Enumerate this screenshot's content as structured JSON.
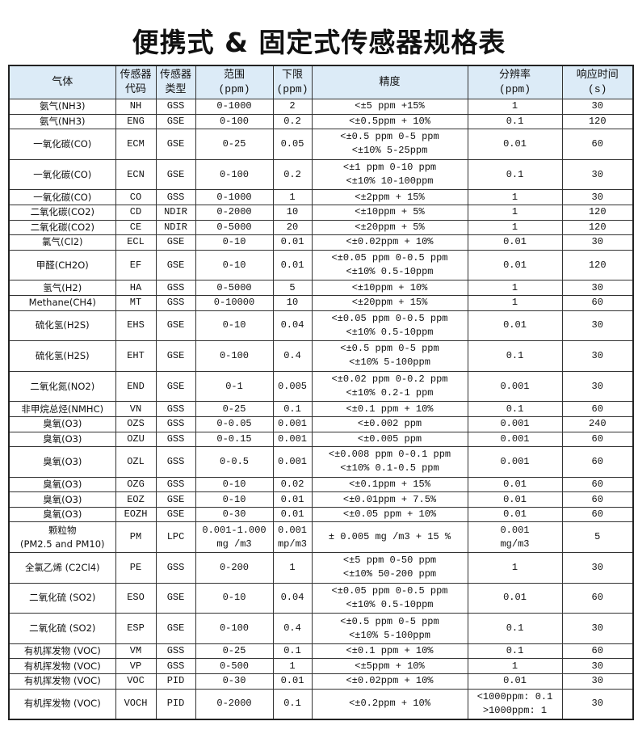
{
  "title": "便携式 & 固定式传感器规格表",
  "header_bg": "#dcebf7",
  "columns": [
    [
      "气体"
    ],
    [
      "传感器",
      "代码"
    ],
    [
      "传感器",
      "类型"
    ],
    [
      "范围",
      "(ppm)"
    ],
    [
      "下限",
      "(ppm)"
    ],
    [
      "精度"
    ],
    [
      "分辨率",
      "(ppm)"
    ],
    [
      "响应时间",
      "(s)"
    ]
  ],
  "rows": [
    [
      [
        "氨气(NH3)"
      ],
      [
        "NH"
      ],
      [
        "GSS"
      ],
      [
        "0-1000"
      ],
      [
        "2"
      ],
      [
        "<±5 ppm +15%"
      ],
      [
        "1"
      ],
      [
        "30"
      ]
    ],
    [
      [
        "氨气(NH3)"
      ],
      [
        "ENG"
      ],
      [
        "GSE"
      ],
      [
        "0-100"
      ],
      [
        "0.2"
      ],
      [
        "<±0.5ppm + 10%"
      ],
      [
        "0.1"
      ],
      [
        "120"
      ]
    ],
    [
      [
        "一氧化碳(CO)"
      ],
      [
        "ECM"
      ],
      [
        "GSE"
      ],
      [
        "0-25"
      ],
      [
        "0.05"
      ],
      [
        "<±0.5 ppm 0-5 ppm",
        "<±10% 5-25ppm"
      ],
      [
        "0.01"
      ],
      [
        "60"
      ]
    ],
    [
      [
        "一氧化碳(CO)"
      ],
      [
        "ECN"
      ],
      [
        "GSE"
      ],
      [
        "0-100"
      ],
      [
        "0.2"
      ],
      [
        "<±1 ppm 0-10 ppm",
        "<±10% 10-100ppm"
      ],
      [
        "0.1"
      ],
      [
        "30"
      ]
    ],
    [
      [
        "一氧化碳(CO)"
      ],
      [
        "CO"
      ],
      [
        "GSS"
      ],
      [
        "0-1000"
      ],
      [
        "1"
      ],
      [
        "<±2ppm + 15%"
      ],
      [
        "1"
      ],
      [
        "30"
      ]
    ],
    [
      [
        "二氧化碳(CO2)"
      ],
      [
        "CD"
      ],
      [
        "NDIR"
      ],
      [
        "0-2000"
      ],
      [
        "10"
      ],
      [
        "<±10ppm + 5%"
      ],
      [
        "1"
      ],
      [
        "120"
      ]
    ],
    [
      [
        "二氧化碳(CO2)"
      ],
      [
        "CE"
      ],
      [
        "NDIR"
      ],
      [
        "0-5000"
      ],
      [
        "20"
      ],
      [
        "<±20ppm + 5%"
      ],
      [
        "1"
      ],
      [
        "120"
      ]
    ],
    [
      [
        "氯气(Cl2)"
      ],
      [
        "ECL"
      ],
      [
        "GSE"
      ],
      [
        "0-10"
      ],
      [
        "0.01"
      ],
      [
        "<±0.02ppm + 10%"
      ],
      [
        "0.01"
      ],
      [
        "30"
      ]
    ],
    [
      [
        "甲醛(CH2O)"
      ],
      [
        "EF"
      ],
      [
        "GSE"
      ],
      [
        "0-10"
      ],
      [
        "0.01"
      ],
      [
        "<±0.05 ppm 0-0.5 ppm",
        "<±10% 0.5-10ppm"
      ],
      [
        "0.01"
      ],
      [
        "120"
      ]
    ],
    [
      [
        "氢气(H2)"
      ],
      [
        "HA"
      ],
      [
        "GSS"
      ],
      [
        "0-5000"
      ],
      [
        "5"
      ],
      [
        "<±10ppm + 10%"
      ],
      [
        "1"
      ],
      [
        "30"
      ]
    ],
    [
      [
        "Methane(CH4)"
      ],
      [
        "MT"
      ],
      [
        "GSS"
      ],
      [
        "0-10000"
      ],
      [
        "10"
      ],
      [
        "<±20ppm + 15%"
      ],
      [
        "1"
      ],
      [
        "60"
      ]
    ],
    [
      [
        "硫化氢(H2S)"
      ],
      [
        "EHS"
      ],
      [
        "GSE"
      ],
      [
        "0-10"
      ],
      [
        "0.04"
      ],
      [
        "<±0.05 ppm 0-0.5 ppm",
        "<±10% 0.5-10ppm"
      ],
      [
        "0.01"
      ],
      [
        "30"
      ]
    ],
    [
      [
        "硫化氢(H2S)"
      ],
      [
        "EHT"
      ],
      [
        "GSE"
      ],
      [
        "0-100"
      ],
      [
        "0.4"
      ],
      [
        "<±0.5 ppm 0-5 ppm",
        "<±10% 5-100ppm"
      ],
      [
        "0.1"
      ],
      [
        "30"
      ]
    ],
    [
      [
        "二氧化氮(NO2)"
      ],
      [
        "END"
      ],
      [
        "GSE"
      ],
      [
        "0-1"
      ],
      [
        "0.005"
      ],
      [
        "<±0.02 ppm 0-0.2 ppm",
        "<±10% 0.2-1 ppm"
      ],
      [
        "0.001"
      ],
      [
        "30"
      ]
    ],
    [
      [
        "非甲烷总烃(NMHC)"
      ],
      [
        "VN"
      ],
      [
        "GSS"
      ],
      [
        "0-25"
      ],
      [
        "0.1"
      ],
      [
        "<±0.1 ppm + 10%"
      ],
      [
        "0.1"
      ],
      [
        "60"
      ]
    ],
    [
      [
        "臭氧(O3)"
      ],
      [
        "OZS"
      ],
      [
        "GSS"
      ],
      [
        "0-0.05"
      ],
      [
        "0.001"
      ],
      [
        "<±0.002 ppm"
      ],
      [
        "0.001"
      ],
      [
        "240"
      ]
    ],
    [
      [
        "臭氧(O3)"
      ],
      [
        "OZU"
      ],
      [
        "GSS"
      ],
      [
        "0-0.15"
      ],
      [
        "0.001"
      ],
      [
        "<±0.005 ppm"
      ],
      [
        "0.001"
      ],
      [
        "60"
      ]
    ],
    [
      [
        "臭氧(O3)"
      ],
      [
        "OZL"
      ],
      [
        "GSS"
      ],
      [
        "0-0.5"
      ],
      [
        "0.001"
      ],
      [
        "<±0.008 ppm 0-0.1 ppm",
        "<±10% 0.1-0.5 ppm"
      ],
      [
        "0.001"
      ],
      [
        "60"
      ]
    ],
    [
      [
        "臭氧(O3)"
      ],
      [
        "OZG"
      ],
      [
        "GSS"
      ],
      [
        "0-10"
      ],
      [
        "0.02"
      ],
      [
        "<±0.1ppm + 15%"
      ],
      [
        "0.01"
      ],
      [
        "60"
      ]
    ],
    [
      [
        "臭氧(O3)"
      ],
      [
        "EOZ"
      ],
      [
        "GSE"
      ],
      [
        "0-10"
      ],
      [
        "0.01"
      ],
      [
        "<±0.01ppm + 7.5%"
      ],
      [
        "0.01"
      ],
      [
        "60"
      ]
    ],
    [
      [
        "臭氧(O3)"
      ],
      [
        "EOZH"
      ],
      [
        "GSE"
      ],
      [
        "0-30"
      ],
      [
        "0.01"
      ],
      [
        "<±0.05 ppm + 10%"
      ],
      [
        "0.01"
      ],
      [
        "60"
      ]
    ],
    [
      [
        "颗粒物",
        "(PM2.5 and PM10)"
      ],
      [
        "PM"
      ],
      [
        "LPC"
      ],
      [
        "0.001-1.000",
        "mg /m3"
      ],
      [
        "0.001",
        "mp/m3"
      ],
      [
        "± 0.005 mg /m3 + 15 %"
      ],
      [
        "0.001",
        "mg/m3"
      ],
      [
        "5"
      ]
    ],
    [
      [
        "全氯乙烯 (C2Cl4)"
      ],
      [
        "PE"
      ],
      [
        "GSS"
      ],
      [
        "0-200"
      ],
      [
        "1"
      ],
      [
        "<±5 ppm 0-50 ppm",
        "<±10% 50-200 ppm"
      ],
      [
        "1"
      ],
      [
        "30"
      ]
    ],
    [
      [
        "二氧化硫 (SO2)"
      ],
      [
        "ESO"
      ],
      [
        "GSE"
      ],
      [
        "0-10"
      ],
      [
        "0.04"
      ],
      [
        "<±0.05 ppm 0-0.5 ppm",
        "<±10% 0.5-10ppm"
      ],
      [
        "0.01"
      ],
      [
        "60"
      ]
    ],
    [
      [
        "二氧化硫 (SO2)"
      ],
      [
        "ESP"
      ],
      [
        "GSE"
      ],
      [
        "0-100"
      ],
      [
        "0.4"
      ],
      [
        "<±0.5 ppm 0-5 ppm",
        "<±10% 5-100ppm"
      ],
      [
        "0.1"
      ],
      [
        "30"
      ]
    ],
    [
      [
        "有机挥发物 (VOC)"
      ],
      [
        "VM"
      ],
      [
        "GSS"
      ],
      [
        "0-25"
      ],
      [
        "0.1"
      ],
      [
        "<±0.1 ppm + 10%"
      ],
      [
        "0.1"
      ],
      [
        "60"
      ]
    ],
    [
      [
        "有机挥发物 (VOC)"
      ],
      [
        "VP"
      ],
      [
        "GSS"
      ],
      [
        "0-500"
      ],
      [
        "1"
      ],
      [
        "<±5ppm + 10%"
      ],
      [
        "1"
      ],
      [
        "30"
      ]
    ],
    [
      [
        "有机挥发物 (VOC)"
      ],
      [
        "VOC"
      ],
      [
        "PID"
      ],
      [
        "0-30"
      ],
      [
        "0.01"
      ],
      [
        "<±0.02ppm + 10%"
      ],
      [
        "0.01"
      ],
      [
        "30"
      ]
    ],
    [
      [
        "有机挥发物 (VOC)"
      ],
      [
        "VOCH"
      ],
      [
        "PID"
      ],
      [
        "0-2000"
      ],
      [
        "0.1"
      ],
      [
        "<±0.2ppm + 10%"
      ],
      [
        "<1000ppm: 0.1",
        ">1000ppm: 1"
      ],
      [
        "30"
      ]
    ]
  ]
}
